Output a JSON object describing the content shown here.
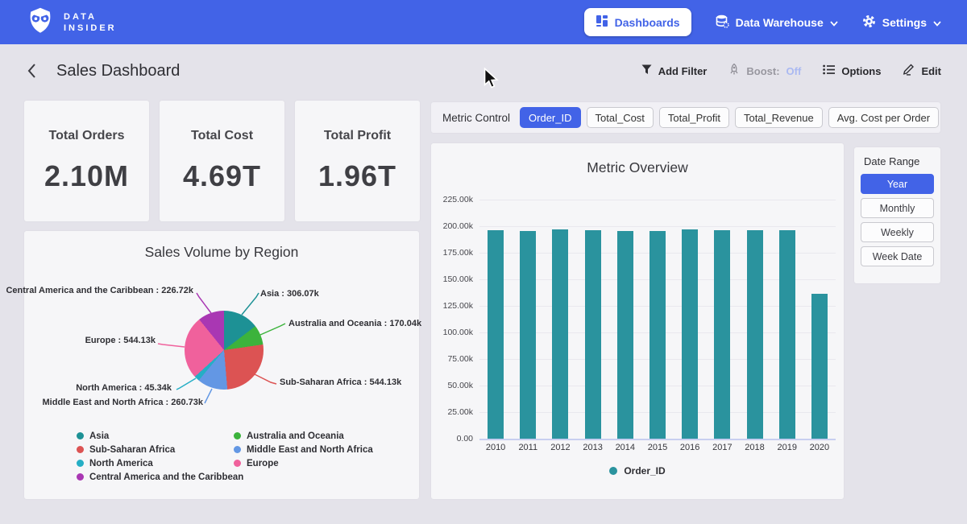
{
  "colors": {
    "accent_blue": "#4263e7",
    "page_bg": "#e4e3ea",
    "card_bg": "#f6f6f8",
    "bar_teal": "#2a939e",
    "boost_off_text": "#aab9f2"
  },
  "nav": {
    "brand": {
      "line1": "DATA",
      "line2": "INSIDER",
      "icon": "owl-logo"
    },
    "items": [
      {
        "label": "Dashboards",
        "icon": "dashboard-grid-icon",
        "active": true,
        "dropdown": false
      },
      {
        "label": "Data Warehouse",
        "icon": "database-icon",
        "active": false,
        "dropdown": true
      },
      {
        "label": "Settings",
        "icon": "gear-icon",
        "active": false,
        "dropdown": true
      }
    ]
  },
  "header": {
    "title": "Sales Dashboard",
    "actions": [
      {
        "label": "Add Filter",
        "icon": "filter-icon"
      },
      {
        "label_prefix": "Boost:",
        "label_value": "Off",
        "icon": "rocket-icon"
      },
      {
        "label": "Options",
        "icon": "list-icon"
      },
      {
        "label": "Edit",
        "icon": "pencil-icon"
      }
    ]
  },
  "kpis": [
    {
      "title": "Total Orders",
      "value": "2.10M"
    },
    {
      "title": "Total Cost",
      "value": "4.69T"
    },
    {
      "title": "Total Profit",
      "value": "1.96T"
    }
  ],
  "metric_control": {
    "label": "Metric Control",
    "options": [
      "Order_ID",
      "Total_Cost",
      "Total_Profit",
      "Total_Revenue",
      "Avg. Cost per Order"
    ],
    "selected": "Order_ID"
  },
  "date_range": {
    "label": "Date Range",
    "options": [
      "Year",
      "Monthly",
      "Weekly",
      "Week Date"
    ],
    "selected": "Year"
  },
  "chart_data": [
    {
      "id": "sales-volume-by-region",
      "type": "pie",
      "title": "Sales Volume by Region",
      "unit": "k",
      "slices": [
        {
          "label": "Asia",
          "value": 306.07,
          "display": "Asia : 306.07k",
          "color": "#1d9195"
        },
        {
          "label": "Australia and Oceania",
          "value": 170.04,
          "display": "Australia and Oceania : 170.04k",
          "color": "#3cb33c"
        },
        {
          "label": "Sub-Saharan Africa",
          "value": 544.13,
          "display": "Sub-Saharan Africa : 544.13k",
          "color": "#dc5353"
        },
        {
          "label": "Middle East and North Africa",
          "value": 260.73,
          "display": "Middle East and North Africa : 260.73k",
          "color": "#6397e4"
        },
        {
          "label": "North America",
          "value": 45.34,
          "display": "North America : 45.34k",
          "color": "#25aec5"
        },
        {
          "label": "Europe",
          "value": 544.13,
          "display": "Europe : 544.13k",
          "color": "#f0619c"
        },
        {
          "label": "Central America and the Caribbean",
          "value": 226.72,
          "display": "Central America and the Caribbean : 226.72k",
          "color": "#a937b3"
        }
      ],
      "legend_columns": [
        [
          "Asia",
          "Sub-Saharan Africa",
          "North America",
          "Central America and the Caribbean"
        ],
        [
          "Australia and Oceania",
          "Middle East and North Africa",
          "Europe"
        ]
      ],
      "legend_position": "bottom"
    },
    {
      "id": "metric-overview",
      "type": "bar",
      "title": "Metric Overview",
      "categories": [
        "2010",
        "2011",
        "2012",
        "2013",
        "2014",
        "2015",
        "2016",
        "2017",
        "2018",
        "2019",
        "2020"
      ],
      "values": [
        196.0,
        195.8,
        197.0,
        195.9,
        195.6,
        195.7,
        197.2,
        196.1,
        195.9,
        196.0,
        136.3
      ],
      "unit": "k",
      "xlabel": "",
      "ylabel": "",
      "ylim": [
        0,
        225
      ],
      "yticks": [
        "0.00",
        "25.00k",
        "50.00k",
        "75.00k",
        "100.00k",
        "125.00k",
        "150.00k",
        "175.00k",
        "200.00k",
        "225.00k"
      ],
      "grid": true,
      "bar_color": "#2a939e",
      "legend": [
        {
          "label": "Order_ID",
          "color": "#2a939e"
        }
      ],
      "legend_position": "bottom"
    }
  ]
}
